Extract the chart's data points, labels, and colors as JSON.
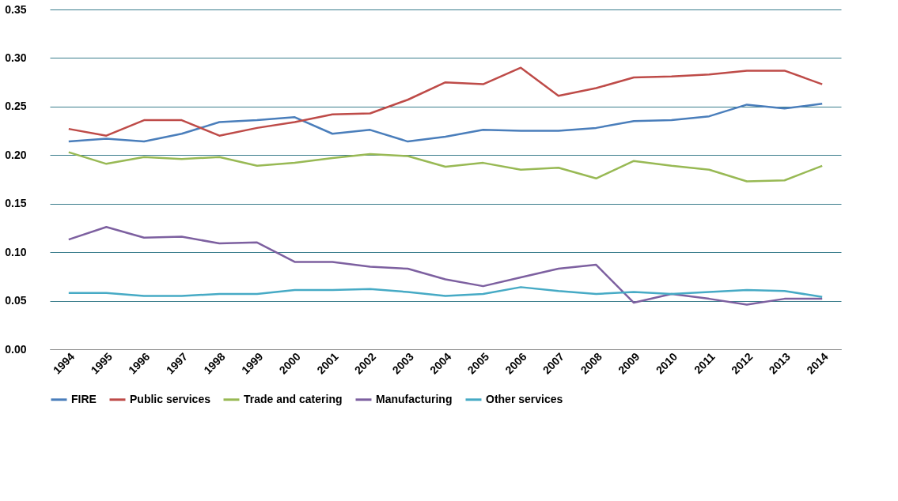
{
  "chart_data": {
    "type": "line",
    "categories": [
      "1994",
      "1995",
      "1996",
      "1997",
      "1998",
      "1999",
      "2000",
      "2001",
      "2002",
      "2003",
      "2004",
      "2005",
      "2006",
      "2007",
      "2008",
      "2009",
      "2010",
      "2011",
      "2012",
      "2013",
      "2014"
    ],
    "series": [
      {
        "name": "FIRE",
        "color": "#4a7ebb",
        "values": [
          0.214,
          0.217,
          0.214,
          0.222,
          0.234,
          0.236,
          0.239,
          0.222,
          0.226,
          0.214,
          0.219,
          0.226,
          0.225,
          0.225,
          0.228,
          0.235,
          0.236,
          0.24,
          0.252,
          0.248,
          0.253
        ]
      },
      {
        "name": "Public services",
        "color": "#be4b48",
        "values": [
          0.227,
          0.22,
          0.236,
          0.236,
          0.22,
          0.228,
          0.234,
          0.242,
          0.243,
          0.257,
          0.275,
          0.273,
          0.29,
          0.261,
          0.269,
          0.28,
          0.281,
          0.283,
          0.287,
          0.287,
          0.273
        ]
      },
      {
        "name": "Trade and catering",
        "color": "#98b954",
        "values": [
          0.203,
          0.191,
          0.198,
          0.196,
          0.198,
          0.189,
          0.192,
          0.197,
          0.201,
          0.199,
          0.188,
          0.192,
          0.185,
          0.187,
          0.176,
          0.194,
          0.189,
          0.185,
          0.173,
          0.174,
          0.189
        ]
      },
      {
        "name": "Manufacturing",
        "color": "#7d60a0",
        "values": [
          0.113,
          0.126,
          0.115,
          0.116,
          0.109,
          0.11,
          0.09,
          0.09,
          0.085,
          0.083,
          0.072,
          0.065,
          0.074,
          0.083,
          0.087,
          0.048,
          0.057,
          0.052,
          0.046,
          0.052,
          0.052
        ]
      },
      {
        "name": "Other services",
        "color": "#46aac5",
        "values": [
          0.058,
          0.058,
          0.055,
          0.055,
          0.057,
          0.057,
          0.061,
          0.061,
          0.062,
          0.059,
          0.055,
          0.057,
          0.064,
          0.06,
          0.057,
          0.059,
          0.057,
          0.059,
          0.061,
          0.06,
          0.054
        ]
      }
    ],
    "ylim": [
      0,
      0.35
    ],
    "yticks": [
      {
        "value": 0,
        "label": "0.00"
      },
      {
        "value": 0.05,
        "label": "0.05"
      },
      {
        "value": 0.1,
        "label": "0.10"
      },
      {
        "value": 0.15,
        "label": "0.15"
      },
      {
        "value": 0.2,
        "label": "0.20"
      },
      {
        "value": 0.25,
        "label": "0.25"
      },
      {
        "value": 0.3,
        "label": "0.30"
      },
      {
        "value": 0.35,
        "label": "0.35"
      }
    ],
    "grid": "y",
    "legend": "bottom",
    "marker": "none",
    "line_style": "solid"
  }
}
